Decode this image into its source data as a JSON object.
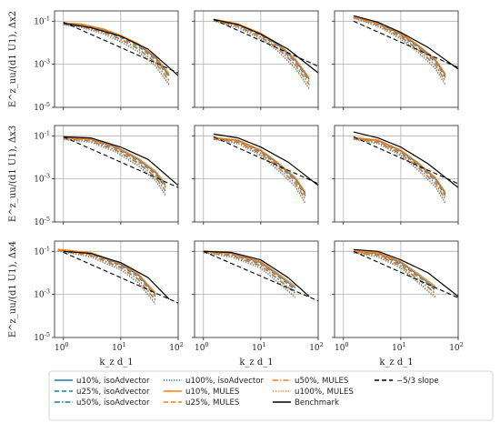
{
  "figure": {
    "row_labels": [
      "Δx2",
      "Δx3",
      "Δx4"
    ],
    "ylabel": "E^z_uu/(d1 U1),",
    "xlabel": "k_z d_1"
  },
  "legend": [
    {
      "label": "u10%, isoAdvector",
      "color": "#1f77b4",
      "dash": "solid"
    },
    {
      "label": "u25%, isoAdvector",
      "color": "#1f77b4",
      "dash": "dashed"
    },
    {
      "label": "u50%, isoAdvector",
      "color": "#1f77b4",
      "dash": "dashdot"
    },
    {
      "label": "u100%, isoAdvector",
      "color": "#1f77b4",
      "dash": "dotted"
    },
    {
      "label": "u10%, MULES",
      "color": "#ff7f0e",
      "dash": "solid"
    },
    {
      "label": "u25%, MULES",
      "color": "#ff7f0e",
      "dash": "dashed"
    },
    {
      "label": "u50%, MULES",
      "color": "#ff7f0e",
      "dash": "dashdot"
    },
    {
      "label": "u100%, MULES",
      "color": "#ff7f0e",
      "dash": "dotted"
    },
    {
      "label": "Benchmark",
      "color": "#000000",
      "dash": "solid"
    },
    {
      "label": "−5/3 slope",
      "color": "#000000",
      "dash": "dashed"
    }
  ],
  "chart_data": {
    "type": "line",
    "layout": "3x3 grid, shared axes",
    "x_scale": "log",
    "y_scale": "log",
    "xlim": [
      0.7,
      100
    ],
    "ylim": [
      1e-05,
      0.3
    ],
    "xticks": [
      "10^0",
      "10^1",
      "10^2"
    ],
    "yticks": [
      "10^-1",
      "10^-3",
      "10^-5"
    ],
    "grid": true,
    "legend_placement": "bottom",
    "panels": [
      {
        "row": 0,
        "col": 0,
        "benchmark": [
          [
            1.0,
            0.08
          ],
          [
            3,
            0.05
          ],
          [
            10,
            0.02
          ],
          [
            30,
            0.005
          ],
          [
            100,
            0.0003
          ]
        ],
        "slope_line": [
          [
            1.0,
            0.09
          ],
          [
            100,
            0.0004
          ]
        ],
        "curves": [
          [
            1.0,
            0.08
          ],
          [
            2,
            0.07
          ],
          [
            5,
            0.04
          ],
          [
            10,
            0.02
          ],
          [
            20,
            0.008
          ],
          [
            40,
            0.002
          ],
          [
            70,
            0.0003
          ]
        ]
      },
      {
        "row": 0,
        "col": 1,
        "benchmark": [
          [
            1.5,
            0.12
          ],
          [
            4,
            0.07
          ],
          [
            10,
            0.025
          ],
          [
            30,
            0.005
          ],
          [
            100,
            0.0004
          ]
        ],
        "slope_line": [
          [
            1.5,
            0.12
          ],
          [
            100,
            0.0008
          ]
        ],
        "curves": [
          [
            1.5,
            0.12
          ],
          [
            4,
            0.07
          ],
          [
            10,
            0.025
          ],
          [
            20,
            0.008
          ],
          [
            40,
            0.0015
          ],
          [
            70,
            0.0002
          ]
        ]
      },
      {
        "row": 0,
        "col": 2,
        "benchmark": [
          [
            1.5,
            0.18
          ],
          [
            4,
            0.09
          ],
          [
            10,
            0.03
          ],
          [
            30,
            0.006
          ],
          [
            100,
            0.0006
          ]
        ],
        "slope_line": [
          [
            1.5,
            0.1
          ],
          [
            100,
            0.0007
          ]
        ],
        "curves": [
          [
            1.5,
            0.16
          ],
          [
            4,
            0.08
          ],
          [
            10,
            0.025
          ],
          [
            20,
            0.007
          ],
          [
            40,
            0.0015
          ],
          [
            60,
            0.0003
          ]
        ]
      },
      {
        "row": 1,
        "col": 0,
        "benchmark": [
          [
            1.0,
            0.09
          ],
          [
            3,
            0.08
          ],
          [
            10,
            0.03
          ],
          [
            30,
            0.008
          ],
          [
            100,
            0.0005
          ]
        ],
        "slope_line": [
          [
            1.0,
            0.09
          ],
          [
            100,
            0.0004
          ]
        ],
        "curves": [
          [
            1.0,
            0.08
          ],
          [
            3,
            0.07
          ],
          [
            8,
            0.03
          ],
          [
            20,
            0.008
          ],
          [
            40,
            0.002
          ],
          [
            60,
            0.0005
          ]
        ]
      },
      {
        "row": 1,
        "col": 1,
        "benchmark": [
          [
            1.5,
            0.12
          ],
          [
            4,
            0.08
          ],
          [
            10,
            0.03
          ],
          [
            30,
            0.006
          ],
          [
            100,
            0.0005
          ]
        ],
        "slope_line": [
          [
            1.5,
            0.09
          ],
          [
            100,
            0.0006
          ]
        ],
        "curves": [
          [
            1.5,
            0.08
          ],
          [
            4,
            0.06
          ],
          [
            10,
            0.02
          ],
          [
            20,
            0.005
          ],
          [
            40,
            0.001
          ],
          [
            60,
            0.0002
          ]
        ]
      },
      {
        "row": 1,
        "col": 2,
        "benchmark": [
          [
            1.5,
            0.15
          ],
          [
            4,
            0.08
          ],
          [
            10,
            0.03
          ],
          [
            30,
            0.005
          ],
          [
            100,
            0.0004
          ]
        ],
        "slope_line": [
          [
            1.5,
            0.09
          ],
          [
            100,
            0.0006
          ]
        ],
        "curves": [
          [
            1.5,
            0.08
          ],
          [
            4,
            0.06
          ],
          [
            10,
            0.02
          ],
          [
            20,
            0.005
          ],
          [
            40,
            0.001
          ],
          [
            60,
            0.0002
          ]
        ]
      },
      {
        "row": 2,
        "col": 0,
        "benchmark": [
          [
            1.0,
            0.1
          ],
          [
            3,
            0.08
          ],
          [
            10,
            0.03
          ],
          [
            30,
            0.006
          ],
          [
            70,
            0.0006
          ]
        ],
        "slope_line": [
          [
            1.0,
            0.09
          ],
          [
            100,
            0.0004
          ]
        ],
        "curves": [
          [
            0.8,
            0.12
          ],
          [
            3,
            0.08
          ],
          [
            10,
            0.025
          ],
          [
            20,
            0.008
          ],
          [
            40,
            0.001
          ]
        ]
      },
      {
        "row": 2,
        "col": 1,
        "benchmark": [
          [
            1.0,
            0.1
          ],
          [
            3,
            0.09
          ],
          [
            10,
            0.04
          ],
          [
            30,
            0.006
          ],
          [
            70,
            0.0008
          ]
        ],
        "slope_line": [
          [
            1.0,
            0.1
          ],
          [
            100,
            0.0005
          ]
        ],
        "curves": [
          [
            1.0,
            0.1
          ],
          [
            3,
            0.08
          ],
          [
            10,
            0.03
          ],
          [
            20,
            0.008
          ],
          [
            40,
            0.002
          ]
        ]
      },
      {
        "row": 2,
        "col": 2,
        "benchmark": [
          [
            1.5,
            0.12
          ],
          [
            4,
            0.1
          ],
          [
            10,
            0.04
          ],
          [
            30,
            0.01
          ],
          [
            100,
            0.0008
          ]
        ],
        "slope_line": [
          [
            1.5,
            0.1
          ],
          [
            100,
            0.0007
          ]
        ],
        "curves": [
          [
            1.5,
            0.1
          ],
          [
            4,
            0.08
          ],
          [
            10,
            0.03
          ],
          [
            20,
            0.008
          ],
          [
            40,
            0.002
          ]
        ]
      }
    ]
  }
}
